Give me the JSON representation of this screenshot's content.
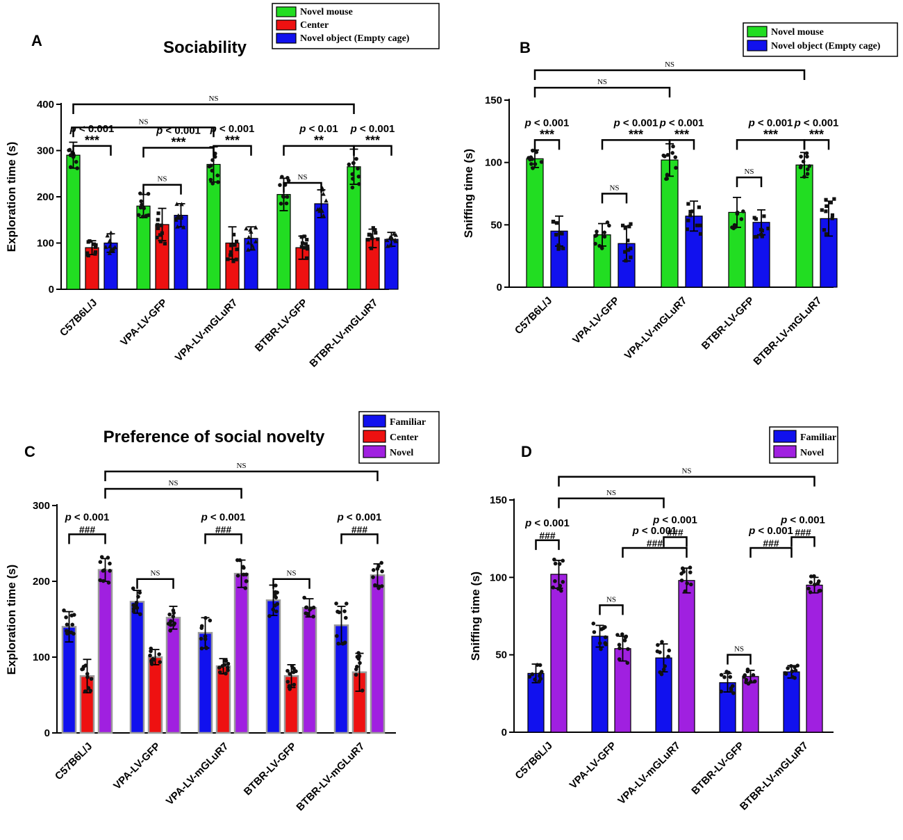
{
  "colors": {
    "novel_mouse": "#22dd22",
    "center": "#ee1111",
    "novel_object": "#1111ee",
    "familiar": "#1111ee",
    "novel": "#a020e0"
  },
  "chart_data": [
    {
      "panel": "A",
      "type": "bar",
      "title": "Sociability",
      "ylabel": "Exploration time (s)",
      "ylim": [
        0,
        400
      ],
      "yticks": [
        0,
        100,
        200,
        300,
        400
      ],
      "categories": [
        "C57B6L/J",
        "VPA-LV-GFP",
        "VPA-LV-mGLuR7",
        "BTBR-LV-GFP",
        "BTBR-LV-mGLuR7"
      ],
      "series": [
        {
          "name": "Novel mouse",
          "color_key": "novel_mouse",
          "values": [
            290,
            180,
            270,
            205,
            265
          ],
          "errors": [
            28,
            25,
            38,
            35,
            38
          ]
        },
        {
          "name": "Center",
          "color_key": "center",
          "values": [
            90,
            140,
            100,
            90,
            110
          ],
          "errors": [
            15,
            35,
            35,
            25,
            20
          ]
        },
        {
          "name": "Novel object (Empty cage)",
          "color_key": "novel_object",
          "values": [
            100,
            160,
            110,
            185,
            108
          ],
          "errors": [
            20,
            25,
            25,
            30,
            15
          ]
        }
      ],
      "legend": [
        "Novel mouse",
        "Center",
        "Novel object (Empty cage)"
      ],
      "annotations": [
        {
          "label": "NS",
          "from": [
            0,
            0
          ],
          "to": [
            4,
            0
          ],
          "y": 400
        },
        {
          "label": "NS",
          "from": [
            0,
            0
          ],
          "to": [
            2,
            0
          ],
          "y": 350
        },
        {
          "pval": "p < 0.001",
          "sig": "***",
          "from": [
            0,
            0
          ],
          "to": [
            0,
            2
          ],
          "y": 310
        },
        {
          "pval": "p < 0.001",
          "sig": "***",
          "from": [
            1,
            0
          ],
          "to": [
            2,
            0
          ],
          "y": 306
        },
        {
          "label": "NS",
          "from": [
            1,
            0
          ],
          "to": [
            1,
            2
          ],
          "y": 226
        },
        {
          "pval": "p < 0.001",
          "sig": "***",
          "from": [
            2,
            0
          ],
          "to": [
            2,
            2
          ],
          "y": 310
        },
        {
          "pval": "p < 0.01",
          "sig": "**",
          "from": [
            3,
            0
          ],
          "to": [
            4,
            0
          ],
          "y": 310
        },
        {
          "label": "NS",
          "from": [
            3,
            0
          ],
          "to": [
            3,
            2
          ],
          "y": 230
        },
        {
          "pval": "p < 0.001",
          "sig": "***",
          "from": [
            4,
            0
          ],
          "to": [
            4,
            2
          ],
          "y": 310
        }
      ]
    },
    {
      "panel": "B",
      "type": "bar",
      "title": "",
      "ylabel": "Sniffing time (s)",
      "ylim": [
        0,
        150
      ],
      "yticks": [
        0,
        50,
        100,
        150
      ],
      "categories": [
        "C57B6L/J",
        "VPA-LV-GFP",
        "VPA-LV-mGLuR7",
        "BTBR-LV-GFP",
        "BTBR-LV-mGLuR7"
      ],
      "series": [
        {
          "name": "Novel mouse",
          "color_key": "novel_mouse",
          "values": [
            103,
            42,
            102,
            60,
            98
          ],
          "errors": [
            7,
            9,
            13,
            12,
            10
          ]
        },
        {
          "name": "Novel object (Empty cage)",
          "color_key": "novel_object",
          "values": [
            45,
            35,
            57,
            52,
            55
          ],
          "errors": [
            12,
            14,
            12,
            10,
            14
          ]
        }
      ],
      "legend": [
        "Novel mouse",
        "Novel object (Empty cage)"
      ],
      "annotations": [
        {
          "label": "NS",
          "from": [
            0,
            0
          ],
          "to": [
            4,
            0
          ],
          "y": 174
        },
        {
          "label": "NS",
          "from": [
            0,
            0
          ],
          "to": [
            2,
            0
          ],
          "y": 160
        },
        {
          "pval": "p < 0.001",
          "sig": "***",
          "from": [
            0,
            0
          ],
          "to": [
            0,
            1
          ],
          "y": 118
        },
        {
          "pval": "p < 0.001",
          "sig": "***",
          "from": [
            1,
            0
          ],
          "to": [
            2,
            0
          ],
          "y": 118
        },
        {
          "label": "NS",
          "from": [
            1,
            0
          ],
          "to": [
            1,
            1
          ],
          "y": 75
        },
        {
          "pval": "p < 0.001",
          "sig": "***",
          "from": [
            2,
            0
          ],
          "to": [
            2,
            1
          ],
          "y": 118
        },
        {
          "pval": "p < 0.001",
          "sig": "***",
          "from": [
            3,
            0
          ],
          "to": [
            4,
            0
          ],
          "y": 118
        },
        {
          "label": "NS",
          "from": [
            3,
            0
          ],
          "to": [
            3,
            1
          ],
          "y": 88
        },
        {
          "pval": "p < 0.001",
          "sig": "***",
          "from": [
            4,
            0
          ],
          "to": [
            4,
            1
          ],
          "y": 118
        }
      ]
    },
    {
      "panel": "C",
      "type": "bar",
      "title": "Preference of social novelty",
      "ylabel": "Exploration time (s)",
      "ylim": [
        0,
        300
      ],
      "yticks": [
        0,
        100,
        200,
        300
      ],
      "categories": [
        "C57B6L/J",
        "VPA-LV-GFP",
        "VPA-LV-mGLuR7",
        "BTBR-LV-GFP",
        "BTBR-LV-mGLuR7"
      ],
      "series": [
        {
          "name": "Familiar",
          "color_key": "familiar",
          "values": [
            140,
            173,
            132,
            175,
            142
          ],
          "errors": [
            20,
            15,
            20,
            20,
            25
          ]
        },
        {
          "name": "Center",
          "color_key": "center",
          "values": [
            75,
            100,
            88,
            75,
            80
          ],
          "errors": [
            22,
            10,
            10,
            15,
            25
          ]
        },
        {
          "name": "Novel",
          "color_key": "novel",
          "values": [
            215,
            152,
            210,
            165,
            208
          ],
          "errors": [
            15,
            15,
            18,
            12,
            15
          ]
        }
      ],
      "legend": [
        "Familiar",
        "Center",
        "Novel"
      ],
      "annotations": [
        {
          "label": "NS",
          "from": [
            0,
            2
          ],
          "to": [
            4,
            2
          ],
          "y": 345
        },
        {
          "label": "NS",
          "from": [
            0,
            2
          ],
          "to": [
            2,
            2
          ],
          "y": 322
        },
        {
          "pval": "p < 0.001",
          "sig": "###",
          "from": [
            0,
            0
          ],
          "to": [
            0,
            2
          ],
          "y": 262
        },
        {
          "label": "NS",
          "from": [
            1,
            0
          ],
          "to": [
            1,
            2
          ],
          "y": 203
        },
        {
          "pval": "p < 0.001",
          "sig": "###",
          "from": [
            2,
            0
          ],
          "to": [
            2,
            2
          ],
          "y": 262
        },
        {
          "label": "NS",
          "from": [
            3,
            0
          ],
          "to": [
            3,
            2
          ],
          "y": 203
        },
        {
          "pval": "p < 0.001",
          "sig": "###",
          "from": [
            4,
            0
          ],
          "to": [
            4,
            2
          ],
          "y": 262
        }
      ]
    },
    {
      "panel": "D",
      "type": "bar",
      "title": "",
      "ylabel": "Sniffing time (s)",
      "ylim": [
        0,
        150
      ],
      "yticks": [
        0,
        50,
        100,
        150
      ],
      "categories": [
        "C57B6L/J",
        "VPA-LV-GFP",
        "VPA-LV-mGLuR7",
        "BTBR-LV-GFP",
        "BTBR-LV-mGLuR7"
      ],
      "series": [
        {
          "name": "Familiar",
          "color_key": "familiar",
          "values": [
            38,
            62,
            48,
            32,
            39
          ],
          "errors": [
            6,
            7,
            9,
            6,
            4
          ]
        },
        {
          "name": "Novel",
          "color_key": "novel",
          "values": [
            102,
            54,
            98,
            36,
            95
          ],
          "errors": [
            9,
            8,
            8,
            4,
            5
          ]
        }
      ],
      "legend": [
        "Familiar",
        "Novel"
      ],
      "annotations": [
        {
          "label": "NS",
          "from": [
            0,
            1
          ],
          "to": [
            4,
            1
          ],
          "y": 165
        },
        {
          "label": "NS",
          "from": [
            0,
            1
          ],
          "to": [
            2,
            0
          ],
          "y": 151
        },
        {
          "pval": "p < 0.001",
          "sig": "###",
          "from": [
            0,
            0
          ],
          "to": [
            0,
            1
          ],
          "y": 124
        },
        {
          "label": "NS",
          "from": [
            1,
            0
          ],
          "to": [
            1,
            1
          ],
          "y": 82
        },
        {
          "pval": "p < 0.001",
          "sig": "###",
          "from": [
            1,
            1
          ],
          "to": [
            2,
            1
          ],
          "y": 119
        },
        {
          "pval": "p < 0.001",
          "sig": "###",
          "from": [
            2,
            0
          ],
          "to": [
            2,
            1
          ],
          "y": 126
        },
        {
          "label": "NS",
          "from": [
            3,
            0
          ],
          "to": [
            3,
            1
          ],
          "y": 50
        },
        {
          "pval": "p < 0.001",
          "sig": "###",
          "from": [
            3,
            1
          ],
          "to": [
            4,
            0
          ],
          "y": 119
        },
        {
          "pval": "p < 0.001",
          "sig": "###",
          "from": [
            4,
            0
          ],
          "to": [
            4,
            1
          ],
          "y": 126
        }
      ]
    }
  ]
}
